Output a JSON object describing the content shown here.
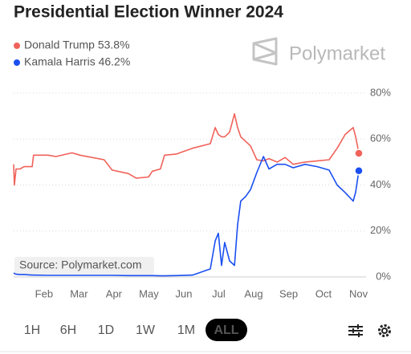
{
  "chart_data": {
    "type": "line",
    "title": "Presidential Election Winner 2024",
    "source": "Source: Polymarket.com",
    "x": [
      1.13,
      1.15,
      1.2,
      1.31,
      1.43,
      1.66,
      1.7,
      2.11,
      2.34,
      2.8,
      3.03,
      3.72,
      3.95,
      4.41,
      4.64,
      4.99,
      5.1,
      5.33,
      5.45,
      5.79,
      6.25,
      6.76,
      6.9,
      6.99,
      7.08,
      7.17,
      7.31,
      7.45,
      7.54,
      7.63,
      7.77,
      7.91,
      8.09,
      8.28,
      8.44,
      8.67,
      8.9,
      9.13,
      9.47,
      9.82,
      10.16,
      10.39,
      10.62,
      10.85,
      10.92,
      11.01
    ],
    "series": [
      {
        "name": "Donald Trump 53.8%",
        "color": "#f0625a",
        "values": [
          49,
          40,
          47,
          47,
          48,
          48,
          53,
          53,
          52.4,
          54,
          53,
          51,
          46.5,
          45,
          43,
          43.5,
          46,
          47,
          53,
          53.5,
          56,
          58,
          65,
          62,
          61,
          61,
          63,
          71,
          65,
          61,
          59,
          57,
          51,
          50.5,
          51.5,
          50,
          52,
          49,
          50,
          50.5,
          51,
          56,
          62,
          65,
          61,
          53.8
        ]
      },
      {
        "name": "Kamala Harris 46.2%",
        "color": "#1a4ff0",
        "values": [
          1.7,
          1.5,
          1.2,
          1,
          1,
          0.8,
          0.8,
          0.7,
          0.7,
          0.7,
          0.7,
          0.7,
          0.7,
          0.6,
          0.6,
          0.6,
          0.6,
          0.5,
          0.5,
          0.6,
          0.8,
          3.5,
          15.7,
          19,
          5,
          15,
          7,
          5,
          22.7,
          33,
          35,
          38,
          45.4,
          52.4,
          47,
          49,
          49,
          47.5,
          49,
          48,
          46.5,
          40,
          36.7,
          33,
          37,
          46.2
        ]
      }
    ],
    "xlim": [
      1.13,
      11.01
    ],
    "xticks": [
      {
        "value": 2,
        "label": "Feb"
      },
      {
        "value": 3,
        "label": "Mar"
      },
      {
        "value": 4,
        "label": "Apr"
      },
      {
        "value": 5,
        "label": "May"
      },
      {
        "value": 6,
        "label": "Jun"
      },
      {
        "value": 7,
        "label": "Jul"
      },
      {
        "value": 8,
        "label": "Aug"
      },
      {
        "value": 9,
        "label": "Sep"
      },
      {
        "value": 10,
        "label": "Oct"
      },
      {
        "value": 11,
        "label": "Nov"
      }
    ],
    "ylim": [
      0,
      80
    ],
    "yticks": [
      {
        "value": 0,
        "label": "0%"
      },
      {
        "value": 20,
        "label": "20%"
      },
      {
        "value": 40,
        "label": "40%"
      },
      {
        "value": 60,
        "label": "60%"
      },
      {
        "value": 80,
        "label": "80%"
      }
    ],
    "grid": true
  },
  "brand": "Polymarket",
  "time_ranges": [
    "1H",
    "6H",
    "1D",
    "1W",
    "1M",
    "ALL"
  ],
  "active_range": 5
}
